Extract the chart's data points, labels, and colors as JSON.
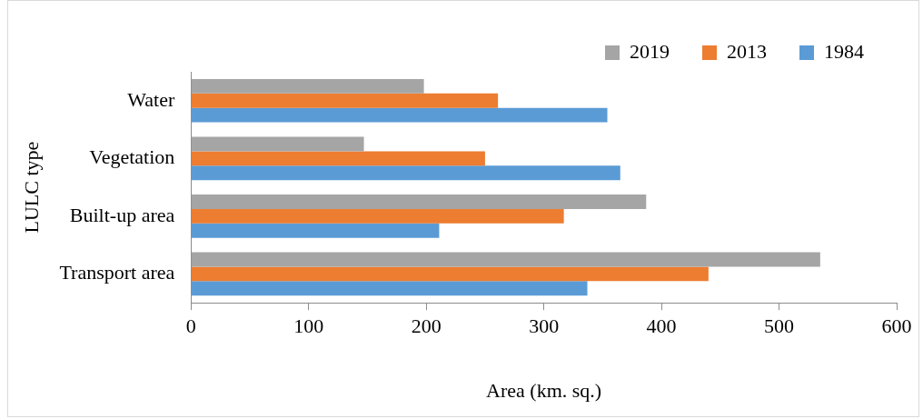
{
  "chart_data": {
    "type": "bar",
    "orientation": "horizontal",
    "xlabel": "Area (km. sq.)",
    "ylabel": "LULC type",
    "categories": [
      "Water",
      "Vegetation",
      "Built-up area",
      "Transport area"
    ],
    "series": [
      {
        "name": "2019",
        "color": "#a5a5a5",
        "values": [
          198,
          147,
          387,
          535
        ]
      },
      {
        "name": "2013",
        "color": "#ed7d31",
        "values": [
          261,
          250,
          317,
          440
        ]
      },
      {
        "name": "1984",
        "color": "#5b9bd5",
        "values": [
          354,
          365,
          211,
          337
        ]
      }
    ],
    "xlim": [
      0,
      600
    ],
    "xticks": [
      0,
      100,
      200,
      300,
      400,
      500,
      600
    ],
    "grid": false,
    "legend": "top right"
  }
}
